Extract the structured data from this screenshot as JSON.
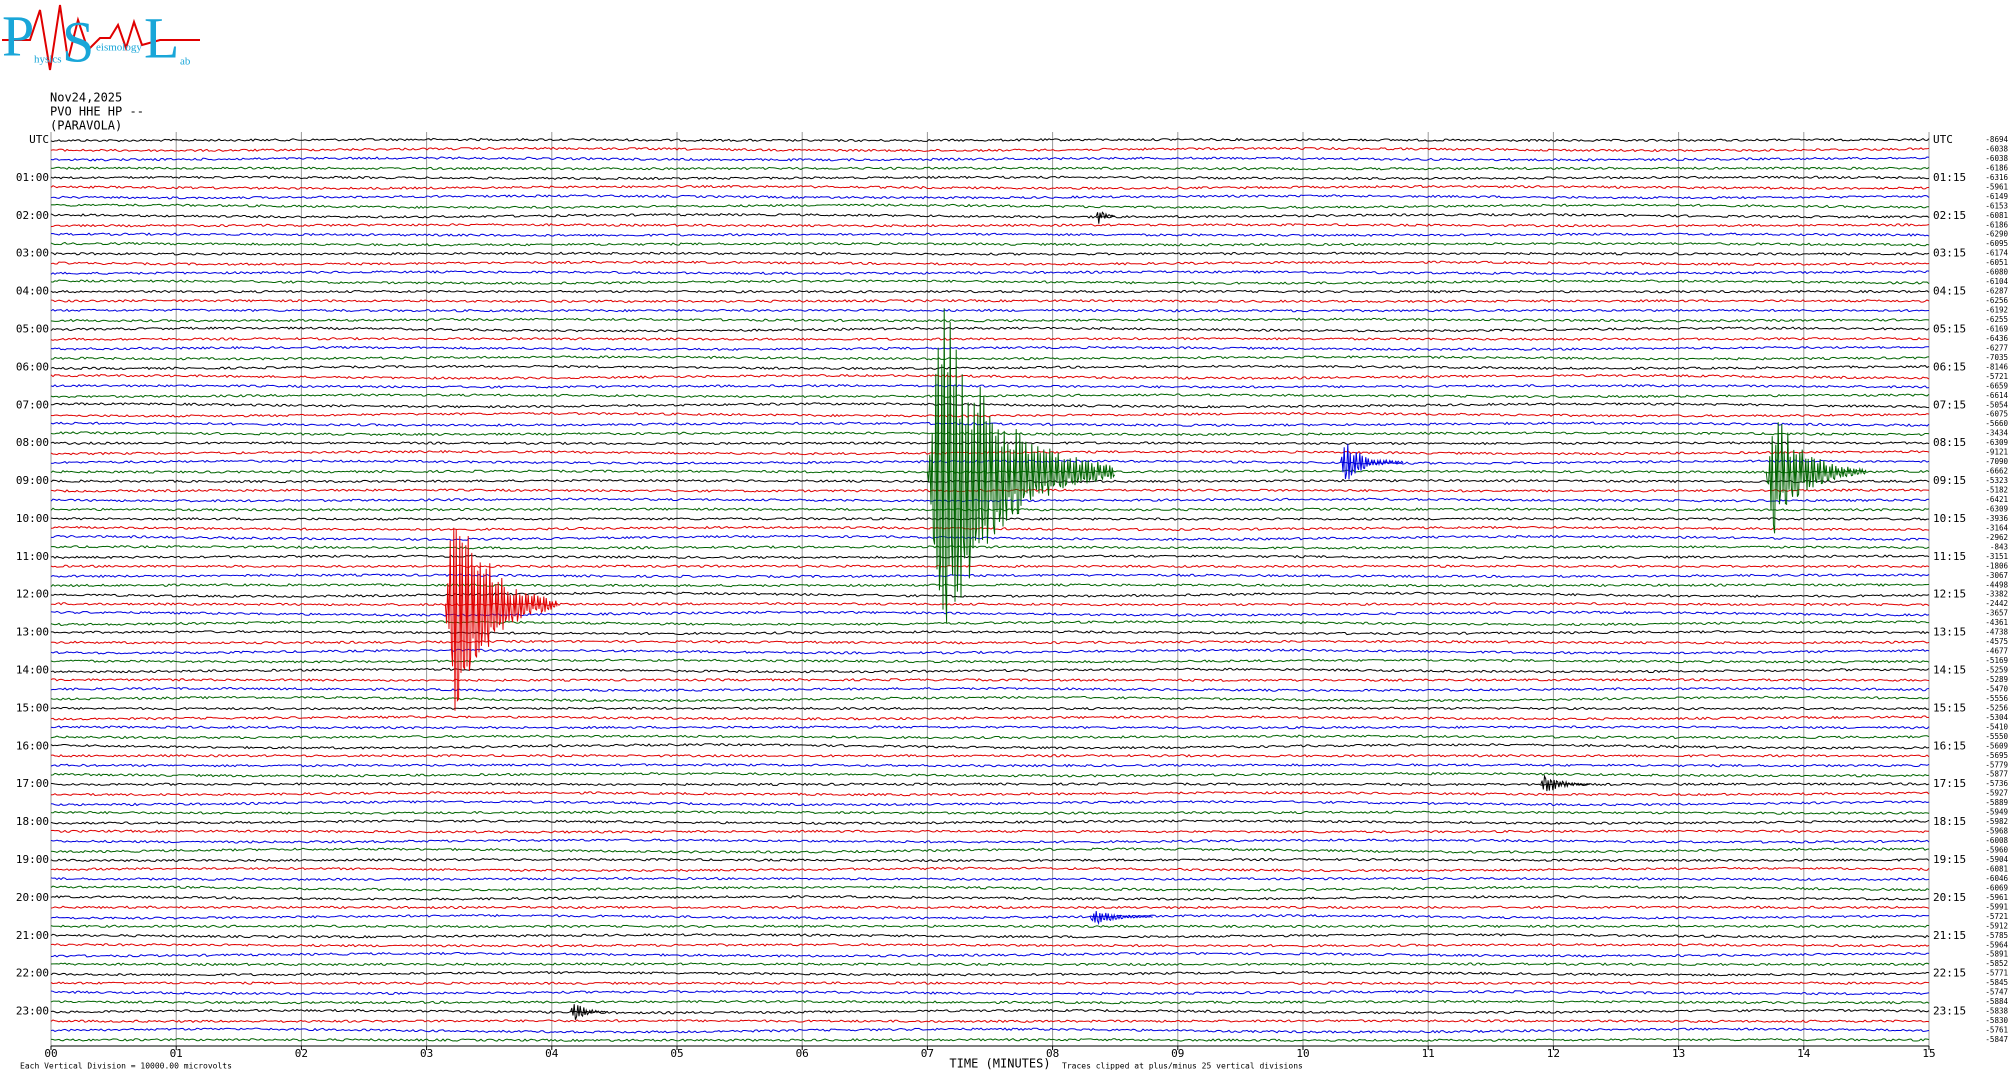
{
  "logo": {
    "letters": [
      "P",
      "S",
      "L"
    ],
    "words": [
      "hysics",
      "eismology",
      "ab"
    ]
  },
  "header": {
    "date": "Nov24,2025",
    "station": "PVO HHE HP --",
    "site": "(PARAVOLA)"
  },
  "chart_data": {
    "type": "helicorder",
    "xlabel": "TIME (MINUTES)",
    "xlim": [
      0,
      15
    ],
    "xticks": [
      {
        "value": 0,
        "label": "00"
      },
      {
        "value": 1,
        "label": "01"
      },
      {
        "value": 2,
        "label": "02"
      },
      {
        "value": 3,
        "label": "03"
      },
      {
        "value": 4,
        "label": "04"
      },
      {
        "value": 5,
        "label": "05"
      },
      {
        "value": 6,
        "label": "06"
      },
      {
        "value": 7,
        "label": "07"
      },
      {
        "value": 8,
        "label": "08"
      },
      {
        "value": 9,
        "label": "09"
      },
      {
        "value": 10,
        "label": "10"
      },
      {
        "value": 11,
        "label": "11"
      },
      {
        "value": 12,
        "label": "12"
      },
      {
        "value": 13,
        "label": "13"
      },
      {
        "value": 14,
        "label": "14"
      },
      {
        "value": 15,
        "label": "15"
      }
    ],
    "grid": true,
    "colors": [
      "#000000",
      "#e00000",
      "#0000e0",
      "#006400"
    ],
    "left_labels": [
      "UTC",
      "01:00",
      "02:00",
      "03:00",
      "04:00",
      "05:00",
      "06:00",
      "07:00",
      "08:00",
      "09:00",
      "10:00",
      "11:00",
      "12:00",
      "13:00",
      "14:00",
      "15:00",
      "16:00",
      "17:00",
      "18:00",
      "19:00",
      "20:00",
      "21:00",
      "22:00",
      "23:00"
    ],
    "right_labels": [
      "UTC",
      "01:15",
      "02:15",
      "03:15",
      "04:15",
      "05:15",
      "06:15",
      "07:15",
      "08:15",
      "09:15",
      "10:15",
      "11:15",
      "12:15",
      "13:15",
      "14:15",
      "15:15",
      "16:15",
      "17:15",
      "18:15",
      "19:15",
      "20:15",
      "21:15",
      "22:15",
      "23:15"
    ],
    "row_offsets": [
      -8694,
      -6038,
      -6038,
      -6186,
      -6316,
      -5961,
      -6149,
      -6153,
      -6081,
      -6186,
      -6290,
      -6095,
      -6174,
      -6051,
      -6080,
      -6104,
      -6287,
      -6256,
      -6192,
      -6255,
      -6169,
      -6436,
      -6277,
      -7035,
      -8146,
      -5721,
      -6659,
      -6614,
      -5054,
      -6075,
      -5660,
      -3434,
      -6309,
      -9121,
      -7090,
      -6662,
      -5323,
      -5182,
      -6421,
      -6309,
      -3936,
      -3164,
      -2962,
      -843,
      -3151,
      -1806,
      -3067,
      -4498,
      -3382,
      -2442,
      -3657,
      -4361,
      -4738,
      -4575,
      -4677,
      -5169,
      -5259,
      -5289,
      -5470,
      -5556,
      -5256,
      -5304,
      -5410,
      -5550,
      -5609,
      -5695,
      -5779,
      -5877,
      -5736,
      -5927,
      -5889,
      -5949,
      -5982,
      -5968,
      -6008,
      -5960,
      -5904,
      -6081,
      -6046,
      -6069,
      -5961,
      -5991,
      -5721,
      -5912,
      -5785,
      -5964,
      -5891,
      -5852,
      -5771,
      -5845,
      -5747,
      -5884,
      -5838,
      -5830,
      -5761,
      -5847
    ],
    "events": [
      {
        "row": 35,
        "start": 7.0,
        "amplitude": 25,
        "duration": 1.5
      },
      {
        "row": 49,
        "start": 3.15,
        "amplitude": 18,
        "duration": 0.9
      },
      {
        "row": 34,
        "start": 10.3,
        "amplitude": 3,
        "duration": 0.5
      },
      {
        "row": 35,
        "start": 13.7,
        "amplitude": 9,
        "duration": 0.8
      },
      {
        "row": 68,
        "start": 11.9,
        "amplitude": 1.5,
        "duration": 0.4
      },
      {
        "row": 92,
        "start": 4.15,
        "amplitude": 1.5,
        "duration": 0.3
      },
      {
        "row": 82,
        "start": 8.3,
        "amplitude": 1.2,
        "duration": 0.5
      },
      {
        "row": 8,
        "start": 8.35,
        "amplitude": 1.5,
        "duration": 0.15
      }
    ],
    "footer_left": "Each Vertical Division = 10000.00 microvolts",
    "footer_right": "Traces clipped at plus/minus 25 vertical divisions"
  }
}
